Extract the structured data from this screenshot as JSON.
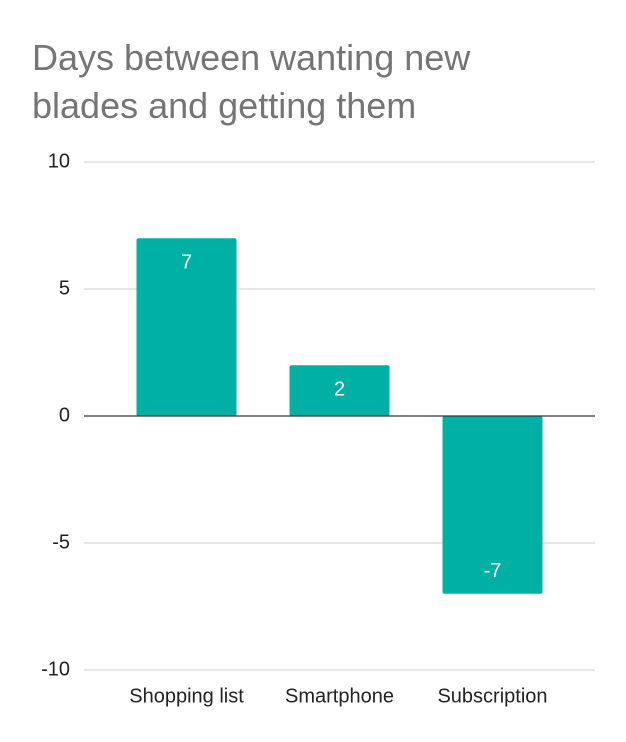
{
  "chart_data": {
    "type": "bar",
    "title": "Days between wanting new blades and getting them",
    "categories": [
      "Shopping list",
      "Smartphone",
      "Subscription"
    ],
    "values": [
      7,
      2,
      -7
    ],
    "color": "#00b0a5",
    "ylim": [
      -10,
      10
    ],
    "yticks": [
      -10,
      -5,
      0,
      5,
      10
    ],
    "grid": true
  }
}
